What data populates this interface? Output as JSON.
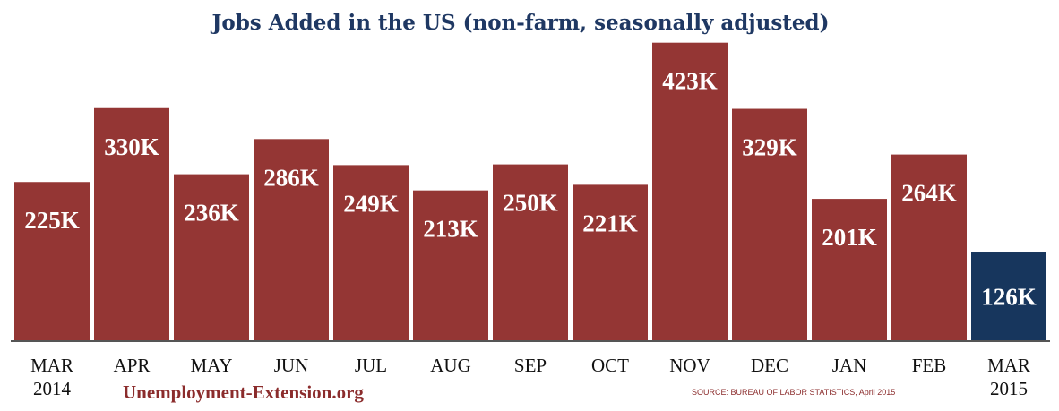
{
  "chart_data": {
    "type": "bar",
    "title": "Jobs Added in the US (non-farm, seasonally adjusted)",
    "xlabel": "",
    "ylabel": "",
    "ylim": [
      0,
      430
    ],
    "grid": false,
    "legend": "none",
    "categories": [
      [
        "MAR",
        "2014"
      ],
      [
        "APR"
      ],
      [
        "MAY"
      ],
      [
        "JUN"
      ],
      [
        "JUL"
      ],
      [
        "AUG"
      ],
      [
        "SEP"
      ],
      [
        "OCT"
      ],
      [
        "NOV"
      ],
      [
        "DEC"
      ],
      [
        "JAN"
      ],
      [
        "FEB"
      ],
      [
        "MAR",
        "2015"
      ]
    ],
    "values": [
      225,
      330,
      236,
      286,
      249,
      213,
      250,
      221,
      423,
      329,
      201,
      264,
      126
    ],
    "data_labels": [
      "225K",
      "330K",
      "236K",
      "286K",
      "249K",
      "213K",
      "250K",
      "221K",
      "423K",
      "329K",
      "201K",
      "264K",
      "126K"
    ],
    "colors": {
      "bar": "#943634",
      "highlight_bar": "#17365d",
      "title": "#1f3863",
      "axis": "#555555"
    },
    "highlight_index": 12
  },
  "footer": {
    "watermark": "Unemployment-Extension.org",
    "source": "SOURCE: BUREAU OF LABOR STATISTICS, April 2015"
  }
}
